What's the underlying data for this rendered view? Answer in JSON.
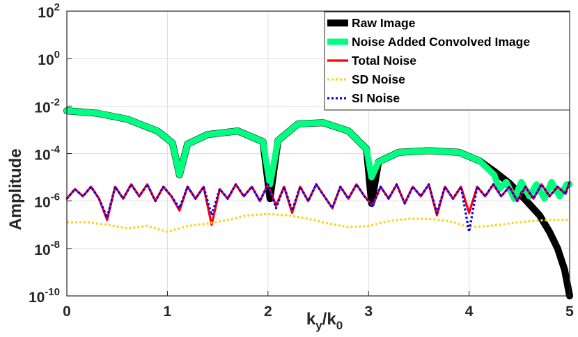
{
  "chart_data": {
    "type": "line",
    "xlabel": "k_y/k_0",
    "ylabel": "Amplitude",
    "xlim": [
      0,
      5
    ],
    "ylim_exponent": [
      -10,
      2
    ],
    "y_scale": "log",
    "grid": true,
    "legend_position": "top-right",
    "x_ticks": [
      "0",
      "1",
      "2",
      "3",
      "4",
      "5"
    ],
    "y_ticks": [
      {
        "base": "10",
        "exp": "-10",
        "value_exp": -10
      },
      {
        "base": "10",
        "exp": "-8",
        "value_exp": -8
      },
      {
        "base": "10",
        "exp": "-6",
        "value_exp": -6
      },
      {
        "base": "10",
        "exp": "-4",
        "value_exp": -4
      },
      {
        "base": "10",
        "exp": "-2",
        "value_exp": -2
      },
      {
        "base": "10",
        "exp": "0",
        "value_exp": 0
      },
      {
        "base": "10",
        "exp": "2",
        "value_exp": 2
      }
    ],
    "series": [
      {
        "name": "Raw Image",
        "color": "#000000",
        "style": "solid",
        "x": [
          0,
          0.3,
          0.6,
          0.9,
          1.05,
          1.12,
          1.2,
          1.4,
          1.7,
          1.95,
          2.02,
          2.1,
          2.3,
          2.55,
          2.8,
          2.98,
          3.03,
          3.1,
          3.3,
          3.6,
          3.9,
          4.1,
          4.25,
          4.4,
          4.55,
          4.7,
          4.8,
          4.88,
          4.95,
          5.0
        ],
        "log10_y": [
          -2.2,
          -2.3,
          -2.55,
          -3.05,
          -3.55,
          -4.9,
          -3.6,
          -3.2,
          -3.05,
          -3.5,
          -5.9,
          -3.45,
          -2.75,
          -2.7,
          -3.05,
          -3.8,
          -6.1,
          -4.35,
          -3.95,
          -3.88,
          -3.95,
          -4.3,
          -4.75,
          -5.25,
          -5.9,
          -6.6,
          -7.3,
          -8.0,
          -8.9,
          -10.0
        ]
      },
      {
        "name": "Noise Added Convolved Image",
        "color": "#00ff80",
        "style": "solid",
        "x": [
          0,
          0.3,
          0.6,
          0.9,
          1.05,
          1.12,
          1.2,
          1.4,
          1.7,
          1.95,
          2.02,
          2.1,
          2.3,
          2.55,
          2.8,
          2.98,
          3.03,
          3.1,
          3.3,
          3.6,
          3.9,
          4.1,
          4.25,
          4.3,
          4.37,
          4.45,
          4.52,
          4.6,
          4.67,
          4.75,
          4.82,
          4.9,
          4.97,
          5.0
        ],
        "log10_y": [
          -2.2,
          -2.3,
          -2.55,
          -3.05,
          -3.55,
          -4.9,
          -3.6,
          -3.2,
          -3.05,
          -3.5,
          -5.3,
          -3.45,
          -2.75,
          -2.7,
          -3.05,
          -3.8,
          -5.0,
          -4.35,
          -3.95,
          -3.88,
          -3.95,
          -4.3,
          -4.9,
          -5.5,
          -5.2,
          -5.9,
          -5.2,
          -5.8,
          -5.3,
          -5.9,
          -5.2,
          -5.8,
          -5.3,
          -5.3
        ]
      },
      {
        "name": "Total Noise",
        "color": "#ff0000",
        "style": "solid",
        "x": [
          0,
          0.08,
          0.16,
          0.24,
          0.32,
          0.4,
          0.48,
          0.56,
          0.64,
          0.72,
          0.8,
          0.88,
          0.96,
          1.04,
          1.12,
          1.2,
          1.28,
          1.36,
          1.44,
          1.52,
          1.6,
          1.68,
          1.76,
          1.84,
          1.92,
          2.0,
          2.08,
          2.16,
          2.24,
          2.32,
          2.4,
          2.48,
          2.56,
          2.64,
          2.72,
          2.8,
          2.88,
          2.96,
          3.04,
          3.12,
          3.2,
          3.28,
          3.36,
          3.44,
          3.52,
          3.6,
          3.68,
          3.76,
          3.84,
          3.92,
          4.0,
          4.08,
          4.16,
          4.24,
          4.32,
          4.4,
          4.48,
          4.56,
          4.64,
          4.72,
          4.8,
          4.88,
          4.96,
          5.0
        ],
        "log10_y": [
          -5.9,
          -5.5,
          -5.8,
          -5.4,
          -5.9,
          -6.8,
          -5.4,
          -5.9,
          -5.3,
          -5.8,
          -5.3,
          -6.0,
          -5.4,
          -5.8,
          -6.4,
          -5.4,
          -5.9,
          -5.4,
          -7.0,
          -5.5,
          -5.9,
          -5.3,
          -5.8,
          -5.4,
          -6.0,
          -5.3,
          -6.2,
          -5.4,
          -6.5,
          -5.4,
          -6.0,
          -5.3,
          -5.8,
          -6.3,
          -5.4,
          -5.9,
          -5.3,
          -5.8,
          -6.2,
          -5.4,
          -5.9,
          -5.3,
          -6.1,
          -5.4,
          -5.8,
          -5.3,
          -6.6,
          -5.4,
          -5.9,
          -5.4,
          -6.5,
          -5.4,
          -5.8,
          -5.3,
          -5.8,
          -5.4,
          -6.0,
          -5.4,
          -5.9,
          -5.3,
          -5.8,
          -5.4,
          -5.7,
          -5.2
        ]
      },
      {
        "name": "SD Noise",
        "color": "#ffd21a",
        "style": "dotted",
        "x": [
          0,
          0.2,
          0.4,
          0.6,
          0.8,
          1.0,
          1.2,
          1.4,
          1.6,
          1.8,
          2.0,
          2.2,
          2.4,
          2.6,
          2.8,
          3.0,
          3.2,
          3.4,
          3.6,
          3.8,
          4.0,
          4.2,
          4.4,
          4.6,
          4.8,
          5.0
        ],
        "log10_y": [
          -6.9,
          -6.9,
          -7.0,
          -7.15,
          -7.05,
          -7.3,
          -7.05,
          -6.95,
          -6.8,
          -6.6,
          -6.55,
          -6.6,
          -6.75,
          -6.95,
          -7.1,
          -7.05,
          -6.85,
          -6.75,
          -6.75,
          -6.85,
          -7.1,
          -7.05,
          -6.95,
          -6.85,
          -6.8,
          -6.8
        ]
      },
      {
        "name": "SI Noise",
        "color": "#0000ff",
        "style": "dotted",
        "x": [
          0,
          0.08,
          0.16,
          0.24,
          0.32,
          0.4,
          0.48,
          0.56,
          0.64,
          0.72,
          0.8,
          0.88,
          0.96,
          1.04,
          1.12,
          1.2,
          1.28,
          1.36,
          1.44,
          1.52,
          1.6,
          1.68,
          1.76,
          1.84,
          1.92,
          2.0,
          2.08,
          2.16,
          2.24,
          2.32,
          2.4,
          2.48,
          2.56,
          2.64,
          2.72,
          2.8,
          2.88,
          2.96,
          3.04,
          3.12,
          3.2,
          3.28,
          3.36,
          3.44,
          3.52,
          3.6,
          3.68,
          3.76,
          3.84,
          3.92,
          4.0,
          4.08,
          4.16,
          4.24,
          4.32,
          4.4,
          4.48,
          4.56,
          4.64,
          4.72,
          4.8,
          4.88,
          4.96,
          5.0
        ],
        "log10_y": [
          -5.9,
          -5.5,
          -5.8,
          -5.4,
          -5.9,
          -6.7,
          -5.4,
          -5.9,
          -5.3,
          -5.8,
          -5.3,
          -6.0,
          -5.4,
          -5.8,
          -6.3,
          -5.4,
          -5.9,
          -5.4,
          -6.6,
          -5.5,
          -5.9,
          -5.3,
          -5.8,
          -5.4,
          -6.0,
          -5.3,
          -6.3,
          -5.4,
          -6.4,
          -5.4,
          -6.0,
          -5.3,
          -5.8,
          -6.3,
          -5.4,
          -5.9,
          -5.3,
          -5.8,
          -6.2,
          -5.4,
          -5.9,
          -5.3,
          -6.1,
          -5.4,
          -5.8,
          -5.3,
          -6.5,
          -5.4,
          -5.9,
          -5.4,
          -7.3,
          -5.4,
          -5.8,
          -5.3,
          -5.8,
          -5.4,
          -6.0,
          -5.4,
          -5.9,
          -5.3,
          -5.8,
          -5.4,
          -5.7,
          -5.2
        ]
      }
    ]
  }
}
